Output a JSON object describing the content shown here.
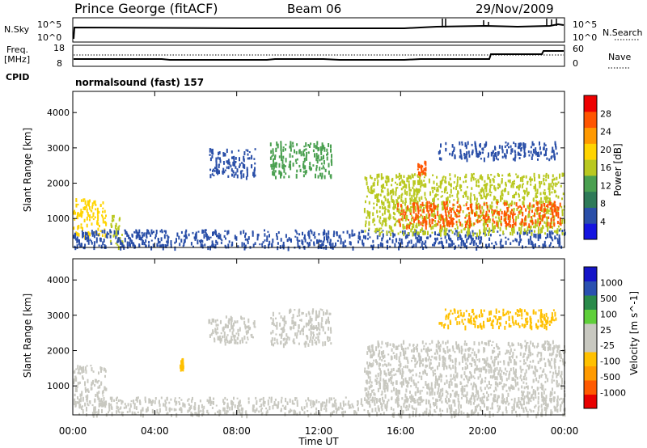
{
  "header": {
    "title": "Prince George (fitACF)",
    "beam": "Beam 06",
    "date": "29/Nov/2009"
  },
  "panels": {
    "nsky_label": "N.Sky",
    "nsky_tick_top": "10^5",
    "nsky_tick_bottom": "10^0",
    "nsky_right_top": "10^5",
    "nsky_right_bottom": "10^0",
    "nsearch_label": "N.Search",
    "freq_label": "Freq.",
    "freq_unit": "[MHz]",
    "freq_tick_top": "18",
    "freq_tick_bottom": "8",
    "nave_tick_top": "60",
    "nave_tick_bottom": "0",
    "nave_label": "Nave",
    "cpid_label": "CPID",
    "cpid_value": "normalsound (fast) 157"
  },
  "colors": {
    "power": [
      "#1515e0",
      "#2a4fa8",
      "#2e7a58",
      "#4aa050",
      "#b9c820",
      "#ffd400",
      "#ff9900",
      "#ff5500",
      "#ee0000"
    ],
    "velocity": [
      "#e80000",
      "#ff5a00",
      "#ff9a00",
      "#ffc000",
      "#c8c8c0",
      "#c8c8c0",
      "#5fcf3a",
      "#2a8a4a",
      "#2a50b0",
      "#1515c8"
    ]
  },
  "chart_data": [
    {
      "type": "heatmap",
      "panel": "power",
      "ylabel": "Slant Range [km]",
      "xlabel": "",
      "x_ticks": [
        "00:00",
        "04:00",
        "08:00",
        "12:00",
        "16:00",
        "20:00",
        "00:00"
      ],
      "xlim": [
        0,
        24
      ],
      "y_ticks": [
        1000,
        2000,
        3000,
        4000
      ],
      "ylim": [
        180,
        4600
      ],
      "colorbar": {
        "label": "Power [dB]",
        "ticks": [
          "4",
          "8",
          "12",
          "16",
          "20",
          "24",
          "28"
        ],
        "range": [
          0,
          30
        ]
      },
      "regions": [
        {
          "x": [
            0.0,
            1.6
          ],
          "y": [
            500,
            1600
          ],
          "value": 18
        },
        {
          "x": [
            1.8,
            2.4
          ],
          "y": [
            200,
            1100
          ],
          "value": 16
        },
        {
          "x": [
            0.0,
            24.0
          ],
          "y": [
            200,
            700
          ],
          "value": 6
        },
        {
          "x": [
            6.6,
            8.9
          ],
          "y": [
            2200,
            3000
          ],
          "value": 6
        },
        {
          "x": [
            9.6,
            12.6
          ],
          "y": [
            2200,
            3200
          ],
          "value": 10
        },
        {
          "x": [
            14.2,
            24.0
          ],
          "y": [
            600,
            2300
          ],
          "value": 14
        },
        {
          "x": [
            15.8,
            23.8
          ],
          "y": [
            800,
            1500
          ],
          "value": 26
        },
        {
          "x": [
            16.8,
            17.2
          ],
          "y": [
            2300,
            2700
          ],
          "value": 24
        },
        {
          "x": [
            17.8,
            23.6
          ],
          "y": [
            2700,
            3200
          ],
          "value": 6
        }
      ]
    },
    {
      "type": "heatmap",
      "panel": "velocity",
      "ylabel": "Slant Range [km]",
      "xlabel": "Time UT",
      "x_ticks": [
        "00:00",
        "04:00",
        "08:00",
        "12:00",
        "16:00",
        "20:00",
        "00:00"
      ],
      "xlim": [
        0,
        24
      ],
      "y_ticks": [
        1000,
        2000,
        3000,
        4000
      ],
      "ylim": [
        180,
        4600
      ],
      "colorbar": {
        "label": "Velocity [m s^-1]",
        "ticks": [
          "-1000",
          "-500",
          "-100",
          "-25",
          "25",
          "100",
          "500",
          "1000"
        ],
        "range": [
          -1000,
          1000
        ]
      },
      "regions": [
        {
          "x": [
            0.0,
            1.6
          ],
          "y": [
            500,
            1600
          ],
          "value": 20
        },
        {
          "x": [
            0.0,
            24.0
          ],
          "y": [
            200,
            700
          ],
          "value": 60
        },
        {
          "x": [
            6.6,
            8.9
          ],
          "y": [
            2200,
            3000
          ],
          "value": 0
        },
        {
          "x": [
            9.6,
            12.6
          ],
          "y": [
            2200,
            3200
          ],
          "value": 0
        },
        {
          "x": [
            14.2,
            24.0
          ],
          "y": [
            600,
            2300
          ],
          "value": 0
        },
        {
          "x": [
            17.8,
            23.6
          ],
          "y": [
            2700,
            3200
          ],
          "value": -300
        },
        {
          "x": [
            5.2,
            5.4
          ],
          "y": [
            1500,
            1800
          ],
          "value": -300
        }
      ]
    }
  ]
}
